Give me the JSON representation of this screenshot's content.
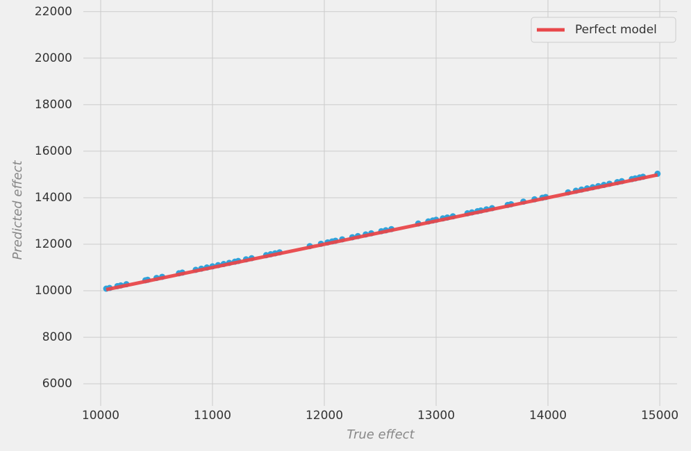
{
  "chart_data": {
    "type": "scatter",
    "xlabel": "True effect",
    "ylabel": "Predicted effect",
    "xlim": [
      9845,
      15155
    ],
    "ylim": [
      5050,
      22500
    ],
    "xticks": [
      10000,
      11000,
      12000,
      13000,
      14000,
      15000
    ],
    "yticks": [
      6000,
      8000,
      10000,
      12000,
      14000,
      16000,
      18000,
      20000,
      22000
    ],
    "grid": true,
    "legend": "upper right",
    "series": [
      {
        "color": "#30a2da",
        "x": [
          10050,
          10080,
          10150,
          10180,
          10230,
          10400,
          10420,
          10500,
          10550,
          10700,
          10730,
          10850,
          10900,
          10950,
          11000,
          11050,
          11100,
          11150,
          11200,
          11230,
          11300,
          11350,
          11480,
          11520,
          11560,
          11600,
          11870,
          11970,
          12030,
          12070,
          12100,
          12160,
          12250,
          12300,
          12370,
          12420,
          12510,
          12550,
          12600,
          12840,
          12930,
          12970,
          13000,
          13060,
          13100,
          13150,
          13280,
          13320,
          13370,
          13400,
          13450,
          13500,
          13640,
          13670,
          13780,
          13880,
          13950,
          13980,
          14180,
          14250,
          14300,
          14350,
          14400,
          14450,
          14500,
          14550,
          14620,
          14660,
          14750,
          14780,
          14820,
          14850,
          14980
        ],
        "values": [
          10090,
          10120,
          10200,
          10230,
          10280,
          10450,
          10470,
          10550,
          10600,
          10750,
          10780,
          10900,
          10950,
          11000,
          11050,
          11100,
          11150,
          11200,
          11250,
          11280,
          11350,
          11400,
          11530,
          11570,
          11610,
          11650,
          11920,
          12020,
          12080,
          12120,
          12150,
          12210,
          12300,
          12350,
          12420,
          12470,
          12560,
          12600,
          12650,
          12890,
          12980,
          13020,
          13050,
          13110,
          13150,
          13200,
          13330,
          13370,
          13420,
          13450,
          13500,
          13550,
          13690,
          13720,
          13830,
          13930,
          14000,
          14030,
          14230,
          14300,
          14350,
          14400,
          14450,
          14500,
          14550,
          14600,
          14670,
          14710,
          14800,
          14830,
          14870,
          14900,
          15030
        ]
      },
      {
        "name": "Perfect model",
        "type": "line",
        "color": "#e8474a",
        "x": [
          10050,
          14980
        ],
        "values": [
          10050,
          14980
        ]
      }
    ]
  }
}
